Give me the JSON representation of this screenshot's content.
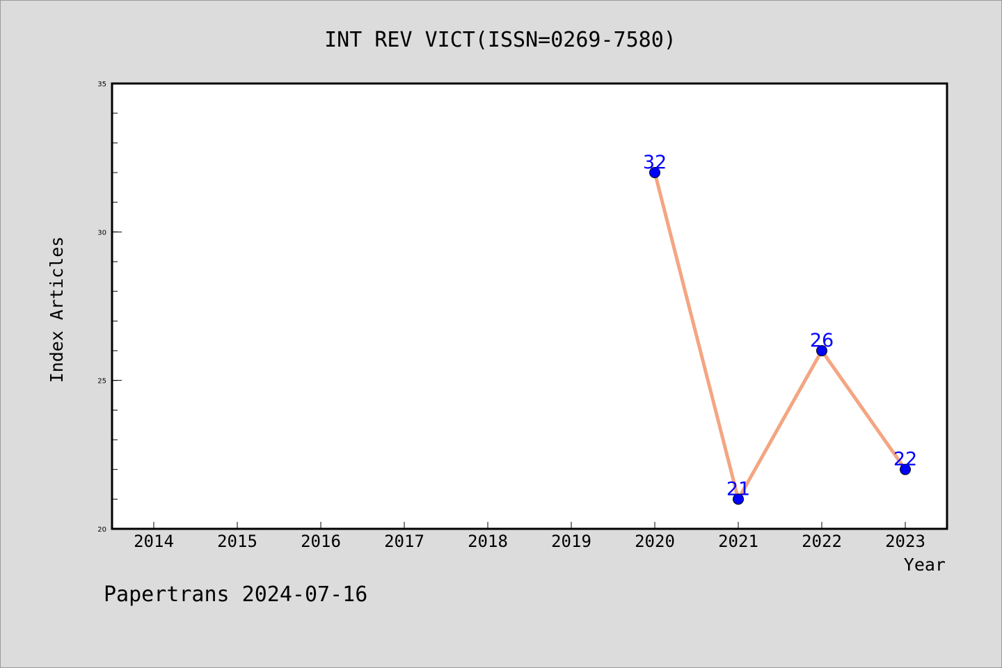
{
  "chart_data": {
    "type": "line",
    "title": "INT REV VICT(ISSN=0269-7580)",
    "xlabel": "Year",
    "ylabel": "Index Articles",
    "categories": [
      "2014",
      "2015",
      "2016",
      "2017",
      "2018",
      "2019",
      "2020",
      "2021",
      "2022",
      "2023"
    ],
    "yticks": [
      "20",
      "25",
      "30",
      "35"
    ],
    "ylim": [
      20,
      35
    ],
    "y_minor_step": 1,
    "series": [
      {
        "x": [
          "2020",
          "2021",
          "2022",
          "2023"
        ],
        "values": [
          32,
          21,
          26,
          22
        ],
        "labels": [
          "32",
          "21",
          "26",
          "22"
        ]
      }
    ],
    "grid": false,
    "legend": "none",
    "line_color": "#f4a582",
    "marker_color": "#0000ff",
    "label_color": "#0000ff",
    "plot_background": "#ffffff",
    "figure_background": "#dcdcdc"
  },
  "footer": {
    "text": "Papertrans 2024-07-16"
  }
}
